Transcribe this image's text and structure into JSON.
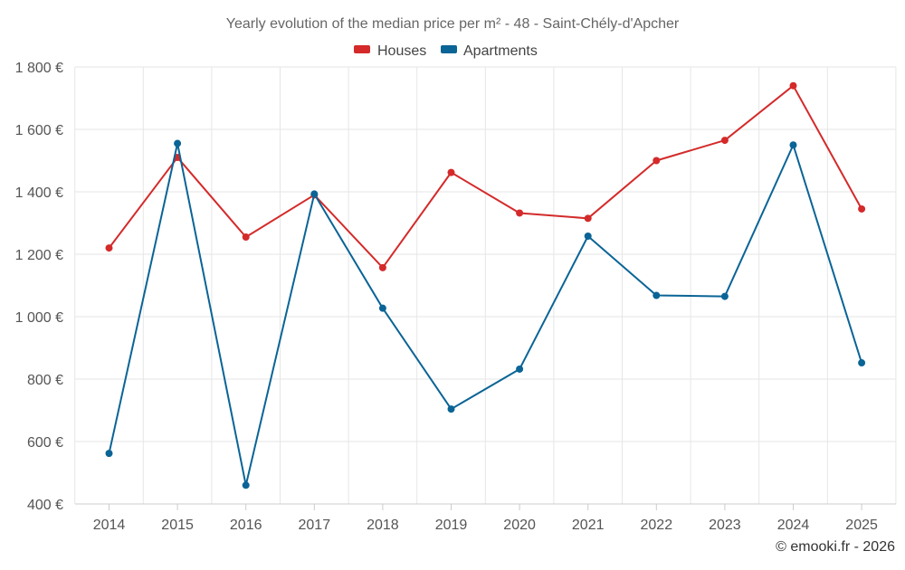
{
  "chart_data": {
    "type": "line",
    "title": "Yearly evolution of the median price per m² - 48 - Saint-Chély-d'Apcher",
    "categories": [
      "2014",
      "2015",
      "2016",
      "2017",
      "2018",
      "2019",
      "2020",
      "2021",
      "2022",
      "2023",
      "2024",
      "2025"
    ],
    "series": [
      {
        "name": "Houses",
        "color": "#d42a2a",
        "values": [
          1220,
          1510,
          1255,
          1390,
          1157,
          1462,
          1332,
          1315,
          1500,
          1565,
          1740,
          1345
        ]
      },
      {
        "name": "Apartments",
        "color": "#0a6496",
        "values": [
          562,
          1555,
          460,
          1393,
          1027,
          704,
          832,
          1258,
          1068,
          1065,
          1550,
          852
        ]
      }
    ],
    "ylim": [
      400,
      1800
    ],
    "yticks": [
      400,
      600,
      800,
      1000,
      1200,
      1400,
      1600,
      1800
    ],
    "ytick_labels": [
      "400 €",
      "600 €",
      "800 €",
      "1 000 €",
      "1 200 €",
      "1 400 €",
      "1 600 €",
      "1 800 €"
    ],
    "grid": true,
    "legend_position": "top-center",
    "credit": "© emooki.fr - 2026"
  }
}
